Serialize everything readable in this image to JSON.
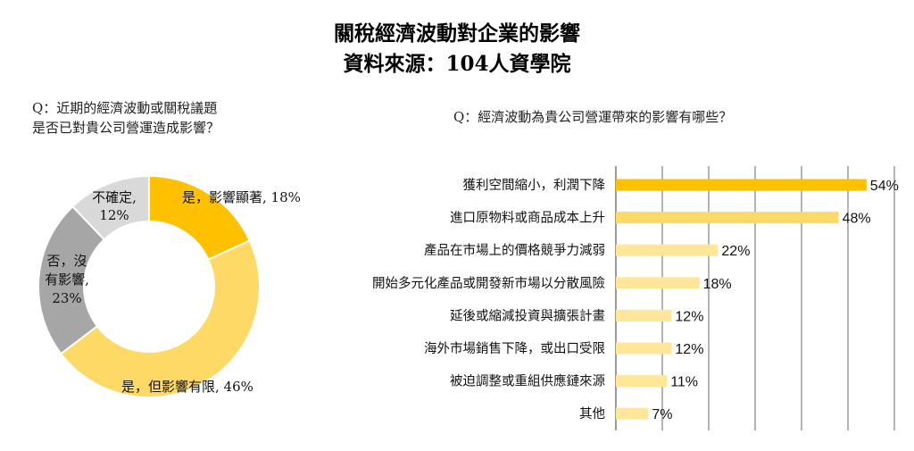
{
  "title_line1": "關稅經濟波動對企業的影響",
  "title_line2": "資料來源：104人資學院",
  "colors": {
    "dark_yellow": "#FFC000",
    "mid_yellow": "#FFD966",
    "light_yellow": "#FFE699",
    "dark_gray": "#A6A6A6",
    "light_gray": "#D9D9D9",
    "grid": "#595959"
  },
  "left_question": {
    "line1": "Q：近期的經濟波動或關稅議題",
    "line2": "是否已對貴公司營運造成影響？"
  },
  "right_question": "Q：經濟波動為貴公司營運帶來的影響有哪些？",
  "chart_data": [
    {
      "type": "pie",
      "subtype": "donut",
      "slices": [
        {
          "label": "是，影響顯著",
          "value": 18,
          "value_text": "18%",
          "color": "#FFC000"
        },
        {
          "label": "是，但影響有限",
          "value": 46,
          "value_text": "46%",
          "color": "#FFD966"
        },
        {
          "label": "否，沒有影響",
          "value": 23,
          "value_text": "23%",
          "color": "#A6A6A6"
        },
        {
          "label": "不確定",
          "value": 12,
          "value_text": "12%",
          "color": "#D9D9D9"
        }
      ],
      "slice_label_lines": [
        [
          "是，影響顯著, 18%"
        ],
        [
          "是，但影響有限, 46%"
        ],
        [
          "否，沒",
          "有影響,",
          "23%"
        ],
        [
          "不確定,",
          "12%"
        ]
      ]
    },
    {
      "type": "bar",
      "orientation": "horizontal",
      "categories": [
        "獲利空間縮小，利潤下降",
        "進口原物料或商品成本上升",
        "產品在市場上的價格競爭力減弱",
        "開始多元化產品或開發新市場以分散風險",
        "延後或縮減投資與擴張計畫",
        "海外市場銷售下降，或出口受限",
        "被迫調整或重組供應鏈來源",
        "其他"
      ],
      "values": [
        54,
        48,
        22,
        18,
        12,
        12,
        11,
        7
      ],
      "value_labels": [
        "54%",
        "48%",
        "22%",
        "18%",
        "12%",
        "12%",
        "11%",
        "7%"
      ],
      "bar_colors": [
        "#FFC000",
        "#FFD966",
        "#FFE699",
        "#FFE699",
        "#FFE699",
        "#FFE699",
        "#FFE699",
        "#FFE699"
      ],
      "xlim": [
        0,
        60
      ],
      "grid": true
    }
  ]
}
